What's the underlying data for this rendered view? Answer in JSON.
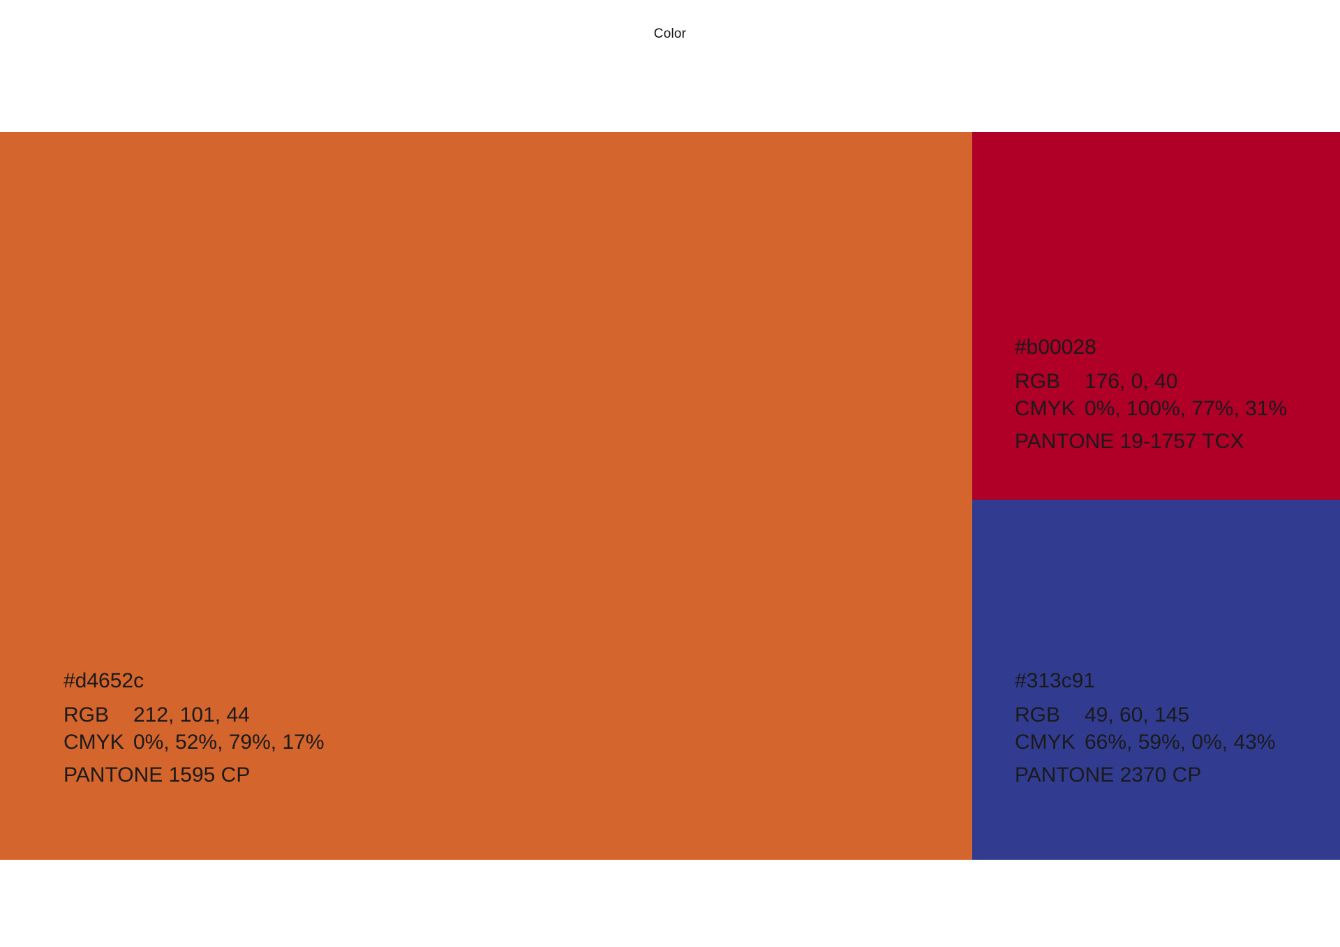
{
  "page": {
    "title": "Color"
  },
  "swatches": [
    {
      "hex": "#d4652c",
      "rgb_label": "RGB",
      "rgb": "212, 101, 44",
      "cmyk_label": "CMYK",
      "cmyk": "0%, 52%, 79%, 17%",
      "pantone": "PANTONE 1595 CP"
    },
    {
      "hex": "#b00028",
      "rgb_label": "RGB",
      "rgb": "176, 0, 40",
      "cmyk_label": "CMYK",
      "cmyk": "0%, 100%, 77%, 31%",
      "pantone": "PANTONE 19-1757 TCX"
    },
    {
      "hex": "#313c91",
      "rgb_label": "RGB",
      "rgb": "49, 60, 145",
      "cmyk_label": "CMYK",
      "cmyk": "66%, 59%, 0%, 43%",
      "pantone": "PANTONE 2370 CP"
    }
  ]
}
